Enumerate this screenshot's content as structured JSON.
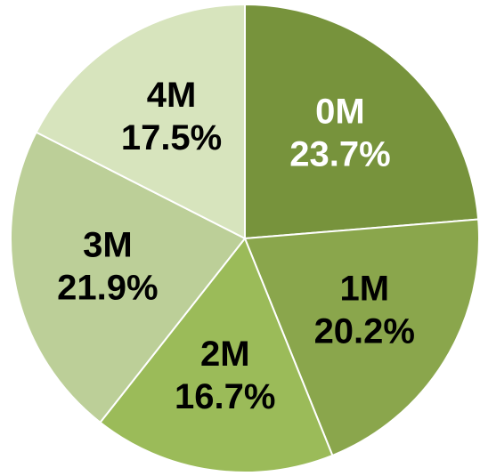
{
  "chart_data": {
    "type": "pie",
    "categories": [
      "0M",
      "1M",
      "2M",
      "3M",
      "4M"
    ],
    "values": [
      23.7,
      20.2,
      16.7,
      21.9,
      17.5
    ],
    "value_labels": [
      "23.7%",
      "20.2%",
      "16.7%",
      "21.9%",
      "17.5%"
    ],
    "colors": [
      "#77933c",
      "#8aa64c",
      "#9bbb59",
      "#bccf98",
      "#d7e4bd"
    ],
    "label_colors": [
      "#ffffff",
      "#000000",
      "#000000",
      "#000000",
      "#000000"
    ]
  }
}
